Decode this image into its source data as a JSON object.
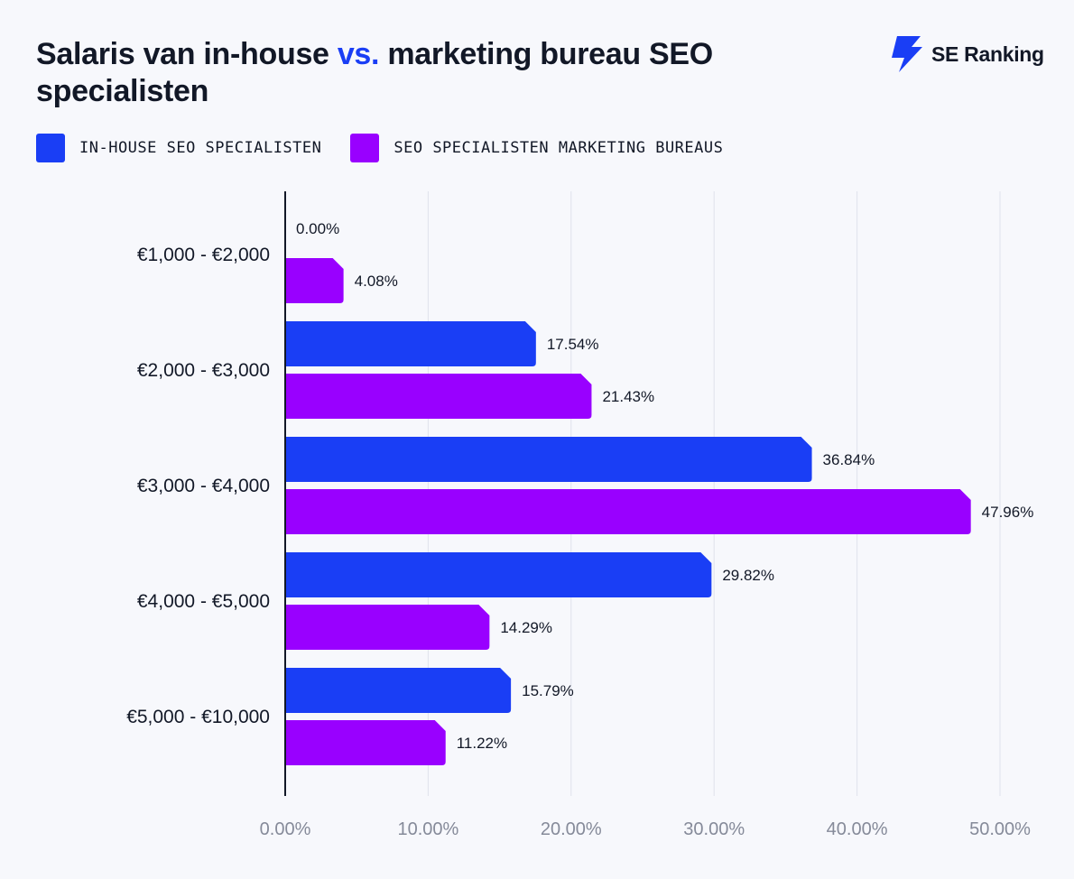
{
  "header": {
    "title_part1": "Salaris van in-house ",
    "title_accent": "vs.",
    "title_part2": " marketing bureau SEO specialisten",
    "logo_text": "SE Ranking"
  },
  "colors": {
    "inhouse": "#1a3ef5",
    "bureau": "#9900ff",
    "grid": "#dfe2ec",
    "axis": "#121827"
  },
  "chart_data": {
    "type": "bar",
    "orientation": "horizontal",
    "title": "Salaris van in-house vs. marketing bureau SEO specialisten",
    "categories": [
      "€1,000 - €2,000",
      "€2,000 - €3,000",
      "€3,000 - €4,000",
      "€4,000 - €5,000",
      "€5,000 - €10,000"
    ],
    "series": [
      {
        "name": "IN-HOUSE SEO SPECIALISTEN",
        "values": [
          0.0,
          17.54,
          36.84,
          29.82,
          15.79
        ],
        "labels": [
          "0.00%",
          "17.54%",
          "36.84%",
          "29.82%",
          "15.79%"
        ]
      },
      {
        "name": "SEO SPECIALISTEN MARKETING BUREAUS",
        "values": [
          4.08,
          21.43,
          47.96,
          14.29,
          11.22
        ],
        "labels": [
          "4.08%",
          "21.43%",
          "47.96%",
          "14.29%",
          "11.22%"
        ]
      }
    ],
    "xlim": [
      0,
      50
    ],
    "xticks": [
      0,
      10,
      20,
      30,
      40,
      50
    ],
    "xtick_labels": [
      "0.00%",
      "10.00%",
      "20.00%",
      "30.00%",
      "40.00%",
      "50.00%"
    ],
    "grid": true,
    "legend": "top-left"
  }
}
